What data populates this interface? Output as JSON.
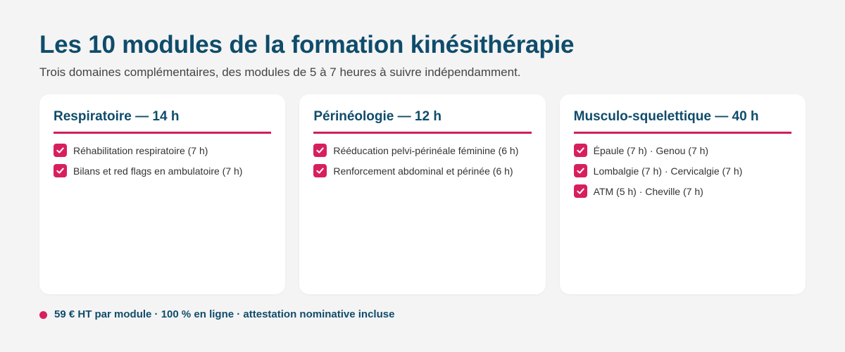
{
  "header": {
    "title": "Les 10 modules de la formation kinésithérapie",
    "subtitle": "Trois domaines complémentaires, des modules de 5 à 7 heures à suivre indépendamment."
  },
  "cards": [
    {
      "title": "Respiratoire — 14 h",
      "items": [
        "Réhabilitation respiratoire (7 h)",
        "Bilans et red flags en ambulatoire (7 h)"
      ]
    },
    {
      "title": "Périnéologie — 12 h",
      "items": [
        "Rééducation pelvi-périnéale féminine (6 h)",
        "Renforcement abdominal et périnée (6 h)"
      ]
    },
    {
      "title": "Musculo-squelettique — 40 h",
      "items": [
        "Épaule (7 h) · Genou (7 h)",
        "Lombalgie (7 h) · Cervicalgie (7 h)",
        "ATM (5 h) · Cheville (7 h)"
      ]
    }
  ],
  "footer": {
    "text": "59 € HT par module · 100 % en ligne · attestation nominative incluse"
  },
  "icons": {
    "check": "check-icon",
    "bullet": "bullet-dot-icon"
  },
  "colors": {
    "heading": "#0f4c6b",
    "accent": "#d81f5e",
    "background": "#f4f4f4"
  }
}
